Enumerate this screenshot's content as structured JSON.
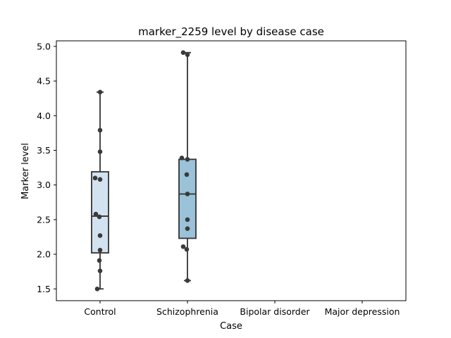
{
  "chart_data": {
    "type": "box",
    "title": "marker_2259 level by disease case",
    "xlabel": "Case",
    "ylabel": "Marker level",
    "ylim": [
      1.33,
      5.08
    ],
    "yticks": [
      1.5,
      2.0,
      2.5,
      3.0,
      3.5,
      4.0,
      4.5,
      5.0
    ],
    "ytick_labels": [
      "1.5",
      "2.0",
      "2.5",
      "3.0",
      "3.5",
      "4.0",
      "4.5",
      "5.0"
    ],
    "categories": [
      "Control",
      "Schizophrenia",
      "Bipolar disorder",
      "Major depression"
    ],
    "grid": false,
    "boxes": [
      {
        "category": "Control",
        "color": "#d3e2ef",
        "whisker_low": 1.5,
        "q1": 2.02,
        "median": 2.55,
        "q3": 3.19,
        "whisker_high": 4.34,
        "points": [
          1.5,
          1.76,
          1.91,
          2.06,
          2.27,
          2.54,
          2.58,
          3.08,
          3.1,
          3.48,
          3.79,
          4.34
        ]
      },
      {
        "category": "Schizophrenia",
        "color": "#9ac2d8",
        "whisker_low": 1.62,
        "q1": 2.23,
        "median": 2.87,
        "q3": 3.37,
        "whisker_high": 4.91,
        "points": [
          1.62,
          2.07,
          2.11,
          2.37,
          2.5,
          2.87,
          3.15,
          3.37,
          3.39,
          4.88,
          4.91
        ]
      },
      {
        "category": "Bipolar disorder",
        "points": []
      },
      {
        "category": "Major depression",
        "points": []
      }
    ]
  }
}
